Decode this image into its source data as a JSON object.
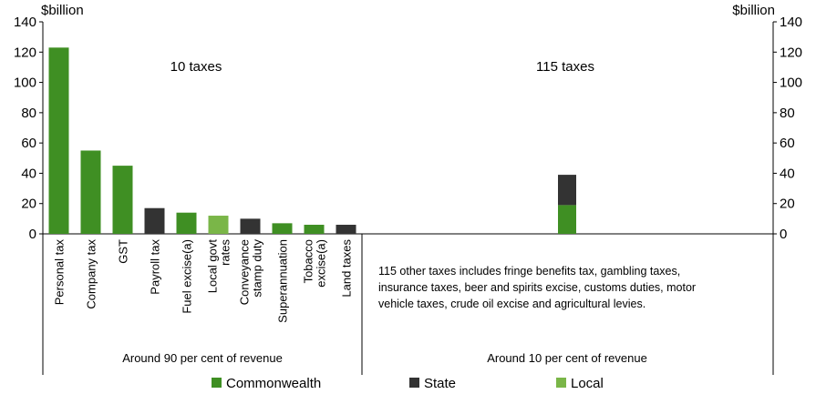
{
  "chart_data": {
    "type": "bar",
    "y_unit_left": "$billion",
    "y_unit_right": "$billion",
    "ylim": [
      0,
      140
    ],
    "y_ticks": [
      0,
      20,
      40,
      60,
      80,
      100,
      120,
      140
    ],
    "legend": {
      "placement": "bottom",
      "items": [
        {
          "name": "Commonwealth",
          "color": "#3f8f23"
        },
        {
          "name": "State",
          "color": "#333333"
        },
        {
          "name": "Local",
          "color": "#7ab648"
        }
      ]
    },
    "left_panel": {
      "title": "10 taxes",
      "footer": "Around 90 per cent of revenue",
      "categories": [
        [
          "Personal tax"
        ],
        [
          "Company tax"
        ],
        [
          "GST"
        ],
        [
          "Payroll tax"
        ],
        [
          "Fuel excise(a)"
        ],
        [
          "Local govt",
          "rates"
        ],
        [
          "Conveyance",
          "stamp duty"
        ],
        [
          "Superannuation"
        ],
        [
          "Tobacco",
          "excise(a)"
        ],
        [
          "Land taxes"
        ]
      ],
      "values": [
        123,
        55,
        45,
        17,
        14,
        12,
        10,
        7,
        6,
        6
      ],
      "level": [
        "Commonwealth",
        "Commonwealth",
        "Commonwealth",
        "State",
        "Commonwealth",
        "Local",
        "State",
        "Commonwealth",
        "Commonwealth",
        "State"
      ]
    },
    "right_panel": {
      "title": "115 taxes",
      "footer": "Around 10 per cent of revenue",
      "note": [
        "115 other taxes includes fringe benefits tax, gambling taxes,",
        "insurance taxes, beer and spirits excise, customs duties, motor",
        "vehicle taxes, crude oil excise and agricultural levies."
      ],
      "stack": [
        {
          "level": "Commonwealth",
          "value": 19
        },
        {
          "level": "State",
          "value": 20
        }
      ]
    }
  }
}
